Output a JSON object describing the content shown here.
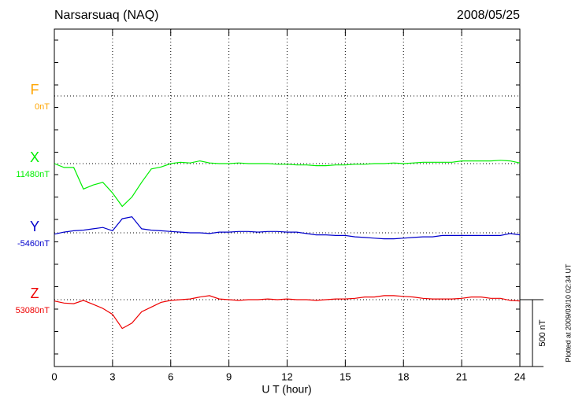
{
  "chart_data": {
    "type": "magnetogram",
    "title": "Narsarsuaq (NAQ)",
    "date": "2008/05/25",
    "xlabel": "U T (hour)",
    "footnote": "Plotted at 2009/03/10 02:34 UT",
    "xlim": [
      0,
      24
    ],
    "xticks": [
      0,
      3,
      6,
      9,
      12,
      15,
      18,
      21,
      24
    ],
    "grid": true,
    "scale_bar": {
      "value": 500,
      "label": "500 nT"
    },
    "x": [
      0,
      0.5,
      1,
      1.5,
      2,
      2.5,
      3,
      3.5,
      4,
      4.5,
      5,
      5.5,
      6,
      6.5,
      7,
      7.5,
      8,
      8.5,
      9,
      9.5,
      10,
      10.5,
      11,
      11.5,
      12,
      12.5,
      13,
      13.5,
      14,
      14.5,
      15,
      15.5,
      16,
      16.5,
      17,
      17.5,
      18,
      18.5,
      19,
      19.5,
      20,
      20.5,
      21,
      21.5,
      22,
      22.5,
      23,
      23.5,
      24
    ],
    "series": [
      {
        "name": "F",
        "color": "#ffa500",
        "baseline": {
          "value": 0,
          "label": "0nT"
        }
      },
      {
        "name": "X",
        "color": "#00ee00",
        "baseline": {
          "value": 11480,
          "label": "11480nT"
        },
        "values": [
          11480,
          11451,
          11451,
          11290,
          11320,
          11340,
          11260,
          11160,
          11230,
          11340,
          11440,
          11455,
          11480,
          11490,
          11485,
          11500,
          11485,
          11480,
          11480,
          11485,
          11480,
          11480,
          11480,
          11475,
          11475,
          11470,
          11470,
          11465,
          11465,
          11470,
          11470,
          11475,
          11475,
          11480,
          11480,
          11485,
          11480,
          11485,
          11490,
          11490,
          11490,
          11490,
          11500,
          11500,
          11500,
          11500,
          11505,
          11500,
          11485
        ]
      },
      {
        "name": "Y",
        "color": "#0000cc",
        "baseline": {
          "value": -5460,
          "label": "-5460nT"
        },
        "values": [
          -5470,
          -5455,
          -5445,
          -5440,
          -5430,
          -5420,
          -5445,
          -5355,
          -5340,
          -5430,
          -5440,
          -5445,
          -5450,
          -5455,
          -5460,
          -5460,
          -5465,
          -5455,
          -5455,
          -5450,
          -5450,
          -5455,
          -5450,
          -5450,
          -5455,
          -5455,
          -5465,
          -5475,
          -5475,
          -5480,
          -5480,
          -5490,
          -5495,
          -5500,
          -5505,
          -5505,
          -5500,
          -5495,
          -5490,
          -5490,
          -5480,
          -5480,
          -5480,
          -5480,
          -5480,
          -5480,
          -5480,
          -5465,
          -5475
        ]
      },
      {
        "name": "Z",
        "color": "#ee0000",
        "baseline": {
          "value": 53080,
          "label": "53080nT"
        },
        "values": [
          53070,
          53055,
          53050,
          53075,
          53045,
          53015,
          52970,
          52865,
          52905,
          52990,
          53025,
          53060,
          53075,
          53080,
          53085,
          53100,
          53110,
          53085,
          53080,
          53075,
          53080,
          53080,
          53085,
          53080,
          53085,
          53080,
          53080,
          53075,
          53080,
          53085,
          53085,
          53090,
          53100,
          53100,
          53110,
          53110,
          53105,
          53100,
          53090,
          53085,
          53085,
          53085,
          53090,
          53100,
          53100,
          53090,
          53090,
          53075,
          53070
        ]
      }
    ]
  }
}
